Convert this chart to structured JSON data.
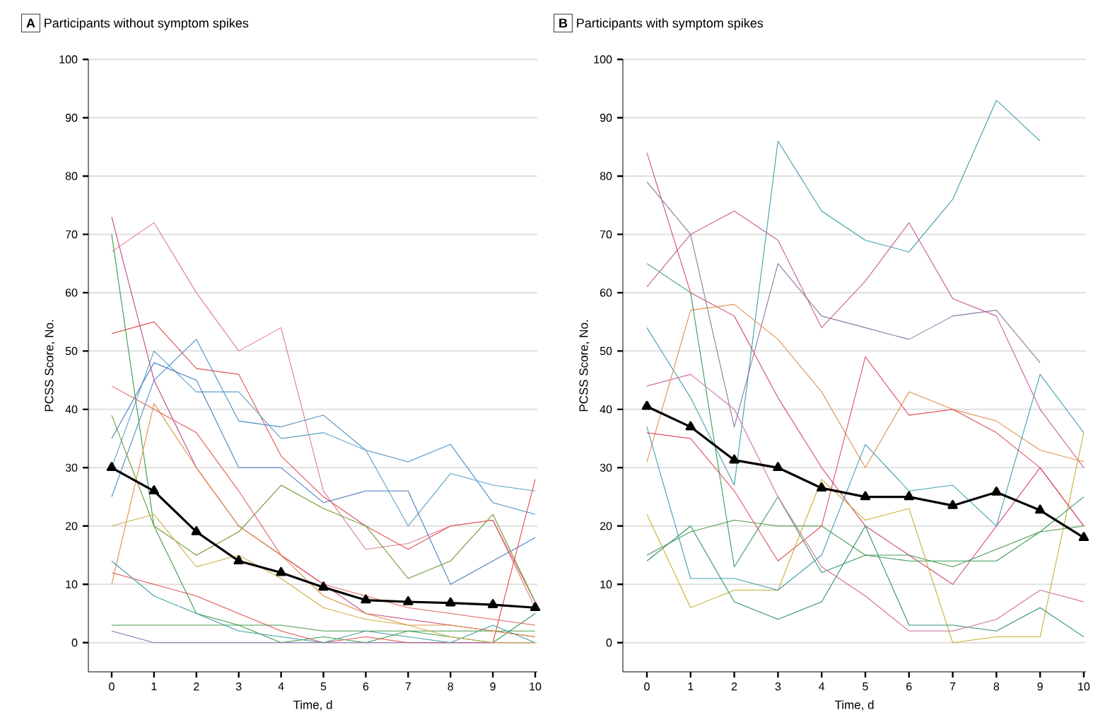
{
  "chart_data": [
    {
      "type": "line",
      "title": "Participants without symptom spikes",
      "annotations": [
        "A"
      ],
      "xlabel": "Time, d",
      "ylabel": "PCSS Score, No.",
      "x": [
        0,
        1,
        2,
        3,
        4,
        5,
        6,
        7,
        8,
        9,
        10
      ],
      "xlim": [
        -0.55,
        10.05
      ],
      "xticks": [
        0,
        1,
        2,
        3,
        4,
        5,
        6,
        7,
        8,
        9,
        10
      ],
      "ylim": [
        -5,
        100
      ],
      "yticks": [
        0,
        10,
        20,
        30,
        40,
        50,
        60,
        70,
        80,
        90,
        100
      ],
      "grid": "y",
      "marker": "none",
      "line_style": "solid",
      "series": [
        {
          "color": "#e07a90",
          "values": [
            67,
            72,
            60,
            50,
            54,
            26,
            16,
            17,
            20,
            21,
            6
          ]
        },
        {
          "color": "#e05555",
          "values": [
            53,
            55,
            47,
            46,
            32,
            25,
            20,
            16,
            20,
            21,
            7
          ]
        },
        {
          "color": "#4a8fc4",
          "values": [
            25,
            45,
            52,
            38,
            37,
            39,
            33,
            31,
            34,
            24,
            22
          ]
        },
        {
          "color": "#5aa0c8",
          "values": [
            30,
            50,
            43,
            43,
            35,
            36,
            33,
            20,
            29,
            27,
            26
          ]
        },
        {
          "color": "#4a7fc0",
          "values": [
            35,
            48,
            45,
            30,
            30,
            24,
            26,
            26,
            10,
            14,
            18
          ]
        },
        {
          "color": "#c04a80",
          "values": [
            73,
            45,
            30,
            20,
            15,
            10,
            5,
            4,
            3,
            2,
            1
          ]
        },
        {
          "color": "#3a9a4a",
          "values": [
            70,
            20,
            5,
            3,
            0,
            1,
            0,
            2,
            1,
            0,
            5
          ]
        },
        {
          "color": "#e05050",
          "values": [
            12,
            10,
            8,
            5,
            2,
            0,
            1,
            0,
            0,
            0,
            28
          ]
        },
        {
          "color": "#4a9a50",
          "values": [
            3,
            3,
            3,
            3,
            3,
            2,
            2,
            2,
            2,
            2,
            2
          ]
        },
        {
          "color": "#9070b0",
          "values": [
            2,
            0,
            0,
            0,
            0,
            0,
            0,
            0,
            0,
            0,
            0
          ]
        },
        {
          "color": "#e09040",
          "values": [
            10,
            41,
            30,
            20,
            15,
            8,
            5,
            3,
            3,
            2,
            1
          ]
        },
        {
          "color": "#6a9a30",
          "values": [
            39,
            20,
            15,
            19,
            27,
            23,
            20,
            11,
            14,
            22,
            7
          ]
        },
        {
          "color": "#e06060",
          "values": [
            44,
            40,
            36,
            26,
            15,
            10,
            8,
            6,
            5,
            4,
            3
          ]
        },
        {
          "color": "#40a0a0",
          "values": [
            14,
            8,
            5,
            2,
            1,
            0,
            2,
            1,
            0,
            3,
            0
          ]
        },
        {
          "color": "#d0b040",
          "values": [
            20,
            22,
            13,
            15,
            11,
            6,
            4,
            3,
            1,
            0,
            0
          ]
        },
        {
          "color": "#000000",
          "marker": "triangle",
          "values": [
            30,
            26,
            19,
            14,
            12,
            9.5,
            7.3,
            7,
            6.8,
            6.5,
            6
          ]
        }
      ]
    },
    {
      "type": "line",
      "title": "Participants with symptom spikes",
      "annotations": [
        "B"
      ],
      "xlabel": "Time, d",
      "ylabel": "PCSS Score, No.",
      "x": [
        0,
        1,
        2,
        3,
        4,
        5,
        6,
        7,
        8,
        9,
        10
      ],
      "xlim": [
        -0.55,
        10.05
      ],
      "xticks": [
        0,
        1,
        2,
        3,
        4,
        5,
        6,
        7,
        8,
        9,
        10
      ],
      "ylim": [
        -5,
        100
      ],
      "yticks": [
        0,
        10,
        20,
        30,
        40,
        50,
        60,
        70,
        80,
        90,
        100
      ],
      "grid": "y",
      "marker": "none",
      "line_style": "solid",
      "series": [
        {
          "color": "#3aa0a8",
          "values": [
            54,
            42,
            27,
            86,
            74,
            69,
            67,
            76,
            93,
            86,
            null
          ]
        },
        {
          "color": "#8a7aa0",
          "values": [
            79,
            70,
            37,
            65,
            56,
            54,
            52,
            56,
            57,
            48,
            null
          ]
        },
        {
          "color": "#d04a80",
          "values": [
            84,
            60,
            56,
            42,
            30,
            20,
            15,
            10,
            20,
            30,
            20
          ]
        },
        {
          "color": "#c86090",
          "values": [
            61,
            70,
            74,
            69,
            54,
            62,
            72,
            59,
            56,
            40,
            30
          ]
        },
        {
          "color": "#e09050",
          "values": [
            31,
            57,
            58,
            52,
            43,
            30,
            43,
            40,
            38,
            33,
            31
          ]
        },
        {
          "color": "#4a9a50",
          "values": [
            15,
            19,
            21,
            20,
            20,
            15,
            15,
            13,
            16,
            19,
            20
          ]
        },
        {
          "color": "#c8b030",
          "values": [
            22,
            6,
            9,
            9,
            28,
            21,
            23,
            0,
            1,
            1,
            36
          ]
        },
        {
          "color": "#40a0b0",
          "values": [
            37,
            11,
            11,
            9,
            15,
            34,
            26,
            27,
            20,
            46,
            36
          ]
        },
        {
          "color": "#e05060",
          "values": [
            36,
            35,
            26,
            14,
            20,
            49,
            39,
            40,
            36,
            30,
            20
          ]
        },
        {
          "color": "#30907a",
          "values": [
            14,
            20,
            7,
            4,
            7,
            20,
            3,
            3,
            2,
            6,
            1
          ]
        },
        {
          "color": "#3a9a5a",
          "values": [
            65,
            60,
            13,
            25,
            12,
            15,
            14,
            14,
            14,
            19,
            25
          ]
        },
        {
          "color": "#d070a0",
          "values": [
            44,
            46,
            40,
            25,
            13,
            8,
            2,
            2,
            4,
            9,
            7
          ]
        },
        {
          "color": "#000000",
          "marker": "triangle",
          "values": [
            40.5,
            37,
            31.3,
            30,
            26.5,
            25,
            25,
            23.5,
            25.8,
            22.7,
            18
          ]
        }
      ]
    }
  ]
}
